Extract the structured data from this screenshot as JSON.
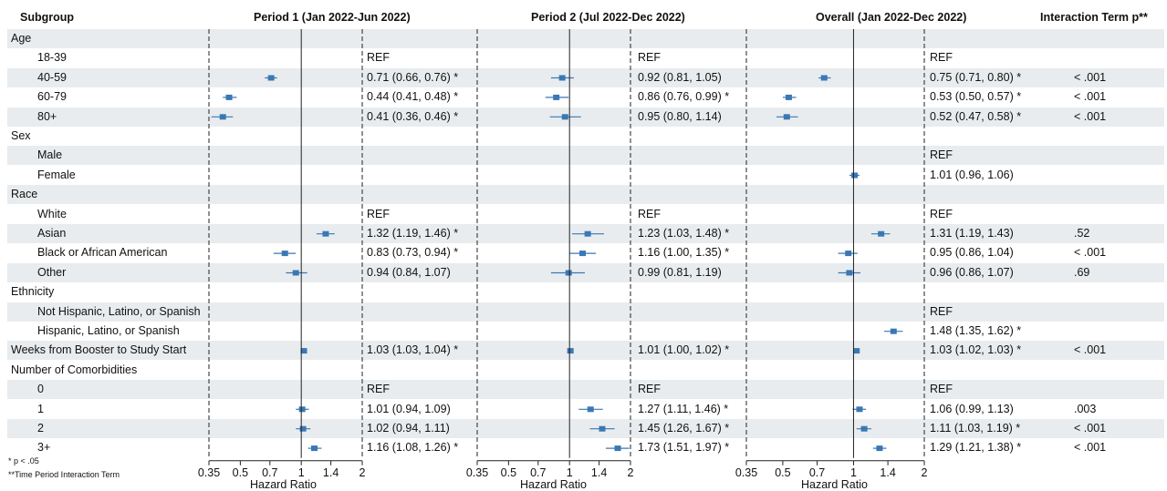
{
  "headers": {
    "subgroup": "Subgroup",
    "period1": "Period 1 (Jan 2022-Jun 2022)",
    "period2": "Period 2 (Jul 2022-Dec 2022)",
    "overall": "Overall (Jan 2022-Dec 2022)",
    "interaction": "Interaction Term p**"
  },
  "footnotes": {
    "sig": "* p < .05",
    "interaction": "**Time Period Interaction Term"
  },
  "axis_title": "Hazard Ratio",
  "chart_data": {
    "type": "forest",
    "x_scale": "log",
    "xlim": [
      0.35,
      2
    ],
    "x_ticks": [
      0.35,
      0.5,
      0.7,
      1,
      1.4,
      2
    ],
    "x_tick_labels": [
      "0.35",
      "0.5",
      "0.7",
      "1",
      "1.4",
      "2"
    ],
    "xlabel": "Hazard Ratio",
    "reference_line": 1,
    "marker_color": "#3a78b4",
    "stripe_color": "#e8ecef",
    "panels": [
      "Period 1 (Jan 2022-Jun 2022)",
      "Period 2 (Jul 2022-Dec 2022)",
      "Overall (Jan 2022-Dec 2022)"
    ],
    "rows": [
      {
        "label": "Age",
        "header": true
      },
      {
        "label": "18-39",
        "p1": {
          "text": "REF"
        },
        "p2": {
          "text": "REF"
        },
        "ov": {
          "text": "REF"
        },
        "p": ""
      },
      {
        "label": "40-59",
        "p1": {
          "hr": 0.71,
          "lo": 0.66,
          "hi": 0.76,
          "text": "0.71 (0.66, 0.76) *"
        },
        "p2": {
          "hr": 0.92,
          "lo": 0.81,
          "hi": 1.05,
          "text": "0.92 (0.81, 1.05)"
        },
        "ov": {
          "hr": 0.75,
          "lo": 0.71,
          "hi": 0.8,
          "text": "0.75 (0.71, 0.80) *"
        },
        "p": "< .001"
      },
      {
        "label": "60-79",
        "p1": {
          "hr": 0.44,
          "lo": 0.41,
          "hi": 0.48,
          "text": "0.44 (0.41, 0.48) *"
        },
        "p2": {
          "hr": 0.86,
          "lo": 0.76,
          "hi": 0.99,
          "text": "0.86 (0.76, 0.99) *"
        },
        "ov": {
          "hr": 0.53,
          "lo": 0.5,
          "hi": 0.57,
          "text": "0.53 (0.50, 0.57) *"
        },
        "p": "< .001"
      },
      {
        "label": "80+",
        "p1": {
          "hr": 0.41,
          "lo": 0.36,
          "hi": 0.46,
          "text": "0.41 (0.36, 0.46) *"
        },
        "p2": {
          "hr": 0.95,
          "lo": 0.8,
          "hi": 1.14,
          "text": "0.95 (0.80, 1.14)"
        },
        "ov": {
          "hr": 0.52,
          "lo": 0.47,
          "hi": 0.58,
          "text": "0.52 (0.47, 0.58) *"
        },
        "p": "< .001"
      },
      {
        "label": "Sex",
        "header": true
      },
      {
        "label": "Male",
        "ov": {
          "text": "REF"
        },
        "p": ""
      },
      {
        "label": "Female",
        "ov": {
          "hr": 1.01,
          "lo": 0.96,
          "hi": 1.06,
          "text": "1.01 (0.96, 1.06)"
        },
        "p": ""
      },
      {
        "label": "Race",
        "header": true
      },
      {
        "label": "White",
        "p1": {
          "text": "REF"
        },
        "p2": {
          "text": "REF"
        },
        "ov": {
          "text": "REF"
        },
        "p": ""
      },
      {
        "label": "Asian",
        "p1": {
          "hr": 1.32,
          "lo": 1.19,
          "hi": 1.46,
          "text": "1.32 (1.19, 1.46) *"
        },
        "p2": {
          "hr": 1.23,
          "lo": 1.03,
          "hi": 1.48,
          "text": "1.23 (1.03, 1.48) *"
        },
        "ov": {
          "hr": 1.31,
          "lo": 1.19,
          "hi": 1.43,
          "text": "1.31 (1.19, 1.43)"
        },
        "p": ".52"
      },
      {
        "label": "Black or African American",
        "p1": {
          "hr": 0.83,
          "lo": 0.73,
          "hi": 0.94,
          "text": "0.83 (0.73, 0.94) *"
        },
        "p2": {
          "hr": 1.16,
          "lo": 1.0,
          "hi": 1.35,
          "text": "1.16 (1.00, 1.35) *"
        },
        "ov": {
          "hr": 0.95,
          "lo": 0.86,
          "hi": 1.04,
          "text": "0.95 (0.86, 1.04)"
        },
        "p": "< .001"
      },
      {
        "label": "Other",
        "p1": {
          "hr": 0.94,
          "lo": 0.84,
          "hi": 1.07,
          "text": "0.94 (0.84, 1.07)"
        },
        "p2": {
          "hr": 0.99,
          "lo": 0.81,
          "hi": 1.19,
          "text": "0.99 (0.81, 1.19)"
        },
        "ov": {
          "hr": 0.96,
          "lo": 0.86,
          "hi": 1.07,
          "text": "0.96 (0.86, 1.07)"
        },
        "p": ".69"
      },
      {
        "label": "Ethnicity",
        "header": true
      },
      {
        "label": "Not Hispanic, Latino, or Spanish",
        "ov": {
          "text": "REF"
        },
        "p": ""
      },
      {
        "label": "Hispanic, Latino, or Spanish",
        "ov": {
          "hr": 1.48,
          "lo": 1.35,
          "hi": 1.62,
          "text": "1.48 (1.35, 1.62) *"
        },
        "p": ""
      },
      {
        "label": "Weeks from Booster to Study Start",
        "header": true,
        "p1": {
          "hr": 1.03,
          "lo": 1.03,
          "hi": 1.04,
          "text": "1.03 (1.03, 1.04) *"
        },
        "p2": {
          "hr": 1.01,
          "lo": 1.0,
          "hi": 1.02,
          "text": "1.01 (1.00, 1.02) *"
        },
        "ov": {
          "hr": 1.03,
          "lo": 1.02,
          "hi": 1.03,
          "text": "1.03 (1.02, 1.03) *"
        },
        "p": "< .001"
      },
      {
        "label": "Number of Comorbidities",
        "header": true
      },
      {
        "label": "0",
        "p1": {
          "text": "REF"
        },
        "p2": {
          "text": "REF"
        },
        "ov": {
          "text": "REF"
        },
        "p": ""
      },
      {
        "label": "1",
        "p1": {
          "hr": 1.01,
          "lo": 0.94,
          "hi": 1.09,
          "text": "1.01 (0.94, 1.09)"
        },
        "p2": {
          "hr": 1.27,
          "lo": 1.11,
          "hi": 1.46,
          "text": "1.27 (1.11, 1.46) *"
        },
        "ov": {
          "hr": 1.06,
          "lo": 0.99,
          "hi": 1.13,
          "text": "1.06 (0.99, 1.13)"
        },
        "p": ".003"
      },
      {
        "label": "2",
        "p1": {
          "hr": 1.02,
          "lo": 0.94,
          "hi": 1.11,
          "text": "1.02 (0.94, 1.11)"
        },
        "p2": {
          "hr": 1.45,
          "lo": 1.26,
          "hi": 1.67,
          "text": "1.45 (1.26, 1.67) *"
        },
        "ov": {
          "hr": 1.11,
          "lo": 1.03,
          "hi": 1.19,
          "text": "1.11 (1.03, 1.19) *"
        },
        "p": "< .001"
      },
      {
        "label": "3+",
        "p1": {
          "hr": 1.16,
          "lo": 1.08,
          "hi": 1.26,
          "text": "1.16 (1.08, 1.26) *"
        },
        "p2": {
          "hr": 1.73,
          "lo": 1.51,
          "hi": 1.97,
          "text": "1.73 (1.51, 1.97) *"
        },
        "ov": {
          "hr": 1.29,
          "lo": 1.21,
          "hi": 1.38,
          "text": "1.29 (1.21, 1.38) *"
        },
        "p": "< .001"
      }
    ]
  }
}
